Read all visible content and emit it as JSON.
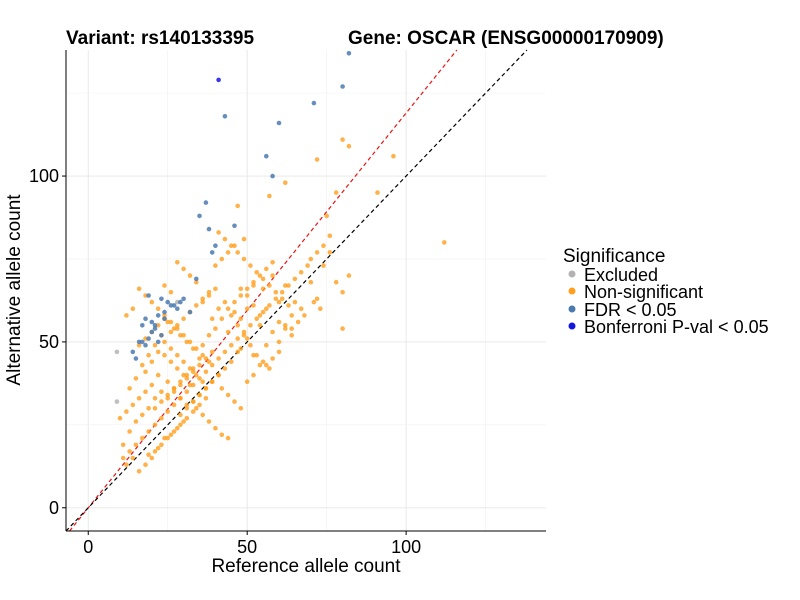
{
  "chart_data": {
    "type": "scatter",
    "title_variant": "Variant: rs140133395",
    "title_gene": "Gene: OSCAR (ENSG00000170909)",
    "xlabel": "Reference allele count",
    "ylabel": "Alternative allele count",
    "xlim": [
      -7,
      144
    ],
    "ylim": [
      -7,
      138
    ],
    "xticks": [
      0,
      50,
      100
    ],
    "yticks": [
      0,
      50,
      100
    ],
    "grid": true,
    "reference_lines": [
      {
        "name": "red-dashed-line",
        "slope": 1.19,
        "intercept": 0,
        "color": "#ee1111"
      },
      {
        "name": "black-dashed-line",
        "slope": 1.0,
        "intercept": 0,
        "color": "#000000"
      }
    ],
    "legend": {
      "title": "Significance",
      "position": "right",
      "entries": [
        {
          "key": "excluded",
          "label": "Excluded",
          "color": "#b3b3b3"
        },
        {
          "key": "nonsig",
          "label": "Non-significant",
          "color": "#ff9f1c"
        },
        {
          "key": "fdr",
          "label": "FDR < 0.05",
          "color": "#4a7ab0"
        },
        {
          "key": "bonf",
          "label": "Bonferroni P-val < 0.05",
          "color": "#1515e0"
        }
      ]
    },
    "series": [
      {
        "name": "Excluded",
        "key": "excluded",
        "color": "#b3b3b3",
        "x": [
          9,
          9,
          28
        ],
        "y": [
          47,
          32,
          62
        ]
      },
      {
        "name": "Bonferroni P-val < 0.05",
        "key": "bonf",
        "color": "#1515e0",
        "x": [
          41
        ],
        "y": [
          129
        ]
      },
      {
        "name": "FDR < 0.05",
        "key": "fdr",
        "color": "#4a7ab0",
        "x": [
          82,
          80,
          71,
          43,
          60,
          56,
          58,
          37,
          35,
          46,
          38,
          40,
          39,
          34,
          23,
          25,
          28,
          30,
          32,
          29,
          27,
          24,
          19,
          18,
          17,
          20,
          21,
          22,
          23,
          19,
          16,
          14,
          18,
          20,
          15,
          22,
          24,
          26,
          17,
          21
        ],
        "y": [
          137,
          127,
          122,
          118,
          116,
          106,
          100,
          92,
          88,
          85,
          84,
          79,
          77,
          69,
          63,
          62,
          60,
          63,
          59,
          62,
          61,
          57,
          64,
          57,
          55,
          56,
          54,
          50,
          52,
          51,
          50,
          47,
          49,
          53,
          45,
          58,
          59,
          61,
          50,
          55
        ]
      },
      {
        "name": "Non-significant",
        "key": "nonsig",
        "color": "#ff9f1c",
        "x": [
          112,
          96,
          91,
          82,
          80,
          78,
          75,
          72,
          62,
          57,
          49,
          47,
          82,
          76,
          74,
          80,
          70,
          72,
          67,
          65,
          62,
          58,
          55,
          60,
          64,
          52,
          56,
          54,
          50,
          48,
          46,
          58,
          60,
          62,
          56,
          52,
          50,
          48,
          44,
          42,
          40,
          38,
          36,
          47,
          45,
          43,
          41,
          39,
          37,
          35,
          33,
          31,
          29,
          27,
          25,
          23,
          21,
          19,
          17,
          15,
          13,
          11,
          34,
          36,
          38,
          40,
          42,
          44,
          32,
          30,
          28,
          26,
          24,
          22,
          20,
          18,
          16,
          14,
          12,
          10,
          35,
          33,
          31,
          29,
          27,
          25,
          23,
          21,
          19,
          17,
          15,
          13,
          39,
          41,
          43,
          45,
          47,
          49,
          51,
          53,
          55,
          57,
          30,
          28,
          26,
          24,
          22,
          20,
          18,
          16,
          14,
          12,
          38,
          36,
          34,
          32,
          30,
          28,
          26,
          24,
          22,
          20,
          18,
          42,
          44,
          46,
          48,
          50,
          52,
          54,
          37,
          35,
          33,
          31,
          29,
          27,
          25,
          23,
          21,
          19,
          33,
          31,
          29,
          27,
          25,
          23,
          21,
          36,
          38,
          40,
          34,
          32,
          30,
          28,
          26,
          24,
          44,
          46,
          48,
          50,
          52,
          54,
          56,
          58,
          60,
          62,
          64,
          39,
          37,
          35,
          33,
          31,
          29,
          27,
          25,
          40,
          42,
          44,
          46,
          48,
          50,
          52,
          54,
          29,
          31,
          33,
          35,
          37,
          39,
          41,
          26,
          28,
          30,
          32,
          34,
          36,
          24,
          22,
          20,
          18,
          16,
          64,
          66,
          68,
          56,
          58,
          60,
          70,
          72,
          74,
          76,
          78,
          80,
          63,
          61,
          59,
          57,
          55,
          53,
          51,
          49,
          47,
          45,
          43,
          41,
          38,
          36,
          34,
          32,
          30,
          28,
          26,
          24,
          22,
          20,
          18,
          16,
          14,
          12,
          11,
          13,
          15,
          17,
          19,
          21,
          23,
          25,
          27,
          29,
          31,
          33,
          35,
          37,
          39,
          41,
          43,
          45,
          47,
          49,
          51,
          53,
          55,
          57,
          59,
          61,
          63,
          65,
          67,
          69,
          71,
          73
        ],
        "y": [
          80,
          106,
          95,
          109,
          111,
          95,
          88,
          105,
          98,
          94,
          81,
          91,
          70,
          77,
          73,
          65,
          68,
          63,
          60,
          62,
          67,
          70,
          66,
          62,
          58,
          67,
          60,
          55,
          60,
          57,
          59,
          53,
          50,
          55,
          49,
          46,
          51,
          48,
          53,
          57,
          54,
          52,
          49,
          47,
          44,
          42,
          40,
          38,
          36,
          34,
          32,
          31,
          33,
          36,
          38,
          35,
          33,
          30,
          28,
          26,
          23,
          19,
          30,
          28,
          26,
          24,
          22,
          21,
          37,
          40,
          42,
          44,
          46,
          40,
          37,
          35,
          33,
          31,
          29,
          27,
          45,
          48,
          50,
          52,
          54,
          56,
          52,
          49,
          46,
          43,
          39,
          36,
          57,
          60,
          62,
          58,
          55,
          52,
          49,
          46,
          44,
          42,
          26,
          24,
          22,
          21,
          18,
          15,
          13,
          11,
          15,
          13,
          65,
          63,
          61,
          59,
          57,
          55,
          53,
          50,
          47,
          44,
          41,
          36,
          34,
          32,
          30,
          38,
          40,
          43,
          33,
          31,
          29,
          27,
          25,
          23,
          21,
          19,
          17,
          16,
          42,
          40,
          38,
          36,
          34,
          32,
          30,
          62,
          64,
          66,
          68,
          70,
          72,
          74,
          65,
          67,
          60,
          62,
          64,
          66,
          68,
          70,
          72,
          74,
          56,
          54,
          52,
          47,
          45,
          43,
          41,
          39,
          37,
          35,
          33,
          73,
          75,
          77,
          79,
          66,
          64,
          61,
          58,
          28,
          30,
          32,
          34,
          36,
          38,
          40,
          48,
          46,
          44,
          42,
          40,
          38,
          57,
          55,
          53,
          51,
          49,
          54,
          56,
          58,
          43,
          45,
          47,
          75,
          77,
          79,
          82,
          68,
          54,
          61,
          63,
          65,
          67,
          69,
          71,
          73,
          75,
          77,
          79,
          81,
          83,
          44,
          46,
          48,
          50,
          52,
          54,
          56,
          58,
          60,
          62,
          64,
          66,
          60,
          58,
          15,
          17,
          19,
          21,
          23,
          25,
          27,
          29,
          31,
          33,
          35,
          37,
          39,
          41,
          43,
          45,
          47,
          49,
          51,
          53,
          55,
          57,
          59,
          61,
          63,
          65,
          67,
          69,
          71,
          73,
          62,
          60
        ]
      }
    ]
  }
}
